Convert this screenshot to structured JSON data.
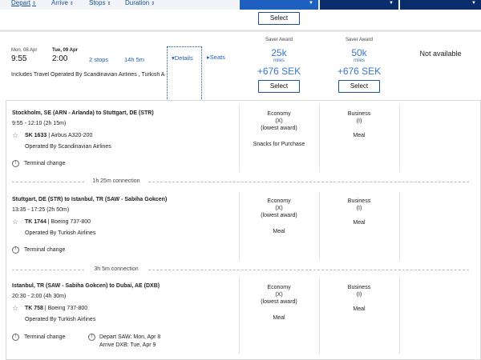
{
  "sort_bar": {
    "depart": "Depart",
    "arrive": "Arrive",
    "stops": "Stops",
    "duration": "Duration"
  },
  "top_select_label": "Select",
  "flight": {
    "depart_date": "Mon, 08 Apr",
    "depart_time": "9:55",
    "arrive_date": "Tue, 09 Apr",
    "arrive_time": "2:00",
    "stops": "2 stops",
    "duration": "14h 5m",
    "details_link": "Details",
    "seats_link": "Seats",
    "operated_note": "Includes Travel Operated By Scandinavian Airlines , Turkish A"
  },
  "awards": [
    {
      "label": "Saver Award",
      "miles": "25k",
      "miles_unit": "miles",
      "price": "+676 SEK",
      "select": "Select"
    },
    {
      "label": "Saver Award",
      "miles": "50k",
      "miles_unit": "miles",
      "price": "+676 SEK",
      "select": "Select"
    }
  ],
  "not_available": "Not available",
  "segments": [
    {
      "route": "Stockholm, SE (ARN - Arlanda) to Stuttgart, DE (STR)",
      "times": "9:55 - 12:10 (2h 15m)",
      "flight_no": "SK 1633",
      "aircraft": "Airbus A320-200",
      "operated_by": "Operated By Scandinavian Airlines",
      "terminal": "Terminal change",
      "economy": {
        "cabin": "Economy",
        "code": "(X)",
        "note": "(lowest award)",
        "meal": "Snacks for Purchase"
      },
      "business": {
        "cabin": "Business",
        "code": "(I)",
        "meal": "Meal"
      }
    },
    {
      "route": "Stuttgart, DE (STR) to Istanbul, TR (SAW - Sabiha Gokcen)",
      "times": "13:35 - 17:25 (2h 50m)",
      "flight_no": "TK 1744",
      "aircraft": "Boeing 737-800",
      "operated_by": "Operated By Turkish Airlines",
      "terminal": "Terminal change",
      "economy": {
        "cabin": "Economy",
        "code": "(X)",
        "note": "(lowest award)",
        "meal": "Meal"
      },
      "business": {
        "cabin": "Business",
        "code": "(I)",
        "meal": "Meal"
      }
    },
    {
      "route": "Istanbul, TR (SAW - Sabiha Gokcen) to Dubai, AE (DXB)",
      "times": "20:30 - 2:00 (4h 30m)",
      "flight_no": "TK 758",
      "aircraft": "Boeing 737-800",
      "operated_by": "Operated By Turkish Airlines",
      "terminal": "Terminal change",
      "date_note_1": "Depart SAW: Mon, Apr 8",
      "date_note_2": "Arrive DXB: Tue, Apr 9",
      "economy": {
        "cabin": "Economy",
        "code": "(X)",
        "note": "(lowest award)",
        "meal": "Meal"
      },
      "business": {
        "cabin": "Business",
        "code": "(I)",
        "meal": "Meal"
      }
    }
  ],
  "connections": [
    "1h 25m connection",
    "3h 5m connection"
  ],
  "colors": {
    "brand_dark": "#0b2d6b",
    "brand_blue": "#1f5fbf",
    "link": "#1a5fb4",
    "award": "#3a78c8"
  }
}
